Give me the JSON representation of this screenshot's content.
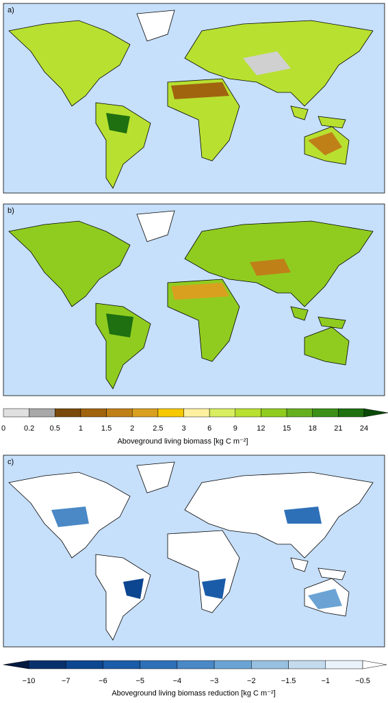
{
  "panels": [
    {
      "label": "a)"
    },
    {
      "label": "b)"
    },
    {
      "label": "c)"
    }
  ],
  "colorbars": [
    {
      "title": "Aboveground living biomass [kg C m⁻²]",
      "ticks": [
        "0",
        "0.2",
        "0.5",
        "1",
        "1.5",
        "2",
        "2.5",
        "3",
        "6",
        "9",
        "12",
        "15",
        "18",
        "21",
        "24"
      ],
      "colors": [
        "#e0e0e0",
        "#a8a8a8",
        "#7a4a0c",
        "#a0640f",
        "#c08018",
        "#d9a020",
        "#f5c800",
        "#fff0a0",
        "#d8ee60",
        "#b8e030",
        "#90cc20",
        "#66b020",
        "#3c9018",
        "#1e7010",
        "#0a4a08"
      ]
    },
    {
      "title": "Aboveground living biomass reduction [kg C m⁻²]",
      "ticks": [
        "−10",
        "−7",
        "−6",
        "−5",
        "−4",
        "−3",
        "−2",
        "−1.5",
        "−1",
        "−0.5"
      ],
      "colors": [
        "#041a40",
        "#08306b",
        "#0c4590",
        "#1a5ca8",
        "#2e70b8",
        "#4a88c6",
        "#6ba4d4",
        "#98c0e0",
        "#c4dbee",
        "#eaf3fa",
        "#ffffff"
      ]
    }
  ]
}
